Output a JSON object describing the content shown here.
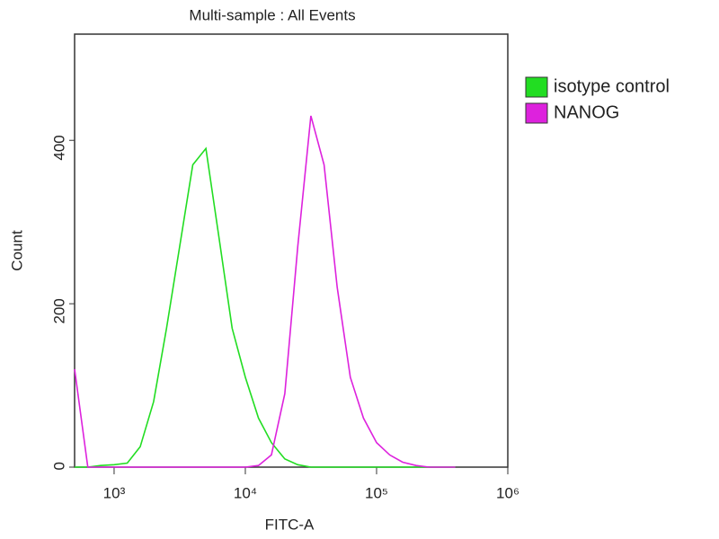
{
  "chart_data": {
    "type": "line",
    "title": "Multi-sample : All Events",
    "x_label": "FITC-A",
    "y_label": "Count",
    "x_scale": "log",
    "x": [
      500,
      630,
      790,
      1000,
      1260,
      1580,
      2000,
      2510,
      3160,
      3980,
      5010,
      6310,
      7940,
      10000,
      12600,
      15800,
      20000,
      25100,
      31600,
      39800,
      50100,
      63100,
      79400,
      100000,
      126000,
      158000,
      200000,
      251000,
      316000,
      398000
    ],
    "series": [
      {
        "name": "isotype control",
        "color": "#22dd22",
        "values": [
          0,
          0,
          2,
          3,
          5,
          25,
          80,
          170,
          270,
          370,
          390,
          280,
          170,
          110,
          60,
          30,
          10,
          3,
          0,
          0,
          0,
          0,
          0,
          0,
          0,
          0,
          0,
          0,
          0,
          0
        ]
      },
      {
        "name": "NANOG",
        "color": "#dd22dd",
        "values": [
          120,
          0,
          0,
          0,
          0,
          0,
          0,
          0,
          0,
          0,
          0,
          0,
          0,
          0,
          2,
          15,
          90,
          270,
          430,
          370,
          220,
          110,
          60,
          30,
          15,
          6,
          2,
          0,
          0,
          0
        ]
      }
    ],
    "xlim": [
      500,
      1000000
    ],
    "xticks": [
      {
        "value": 1000,
        "label": "10³"
      },
      {
        "value": 10000,
        "label": "10⁴"
      },
      {
        "value": 100000,
        "label": "10⁵"
      },
      {
        "value": 1000000,
        "label": "10⁶"
      }
    ],
    "ylim": [
      0,
      530
    ],
    "yticks": [
      0,
      200,
      400
    ],
    "legend": "right"
  }
}
